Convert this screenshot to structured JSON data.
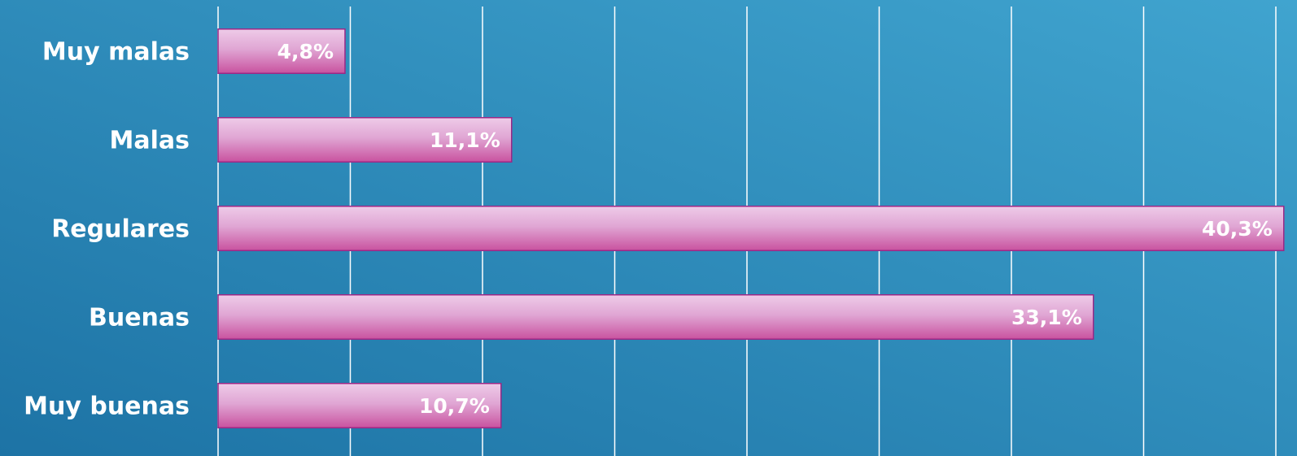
{
  "chart_data": {
    "type": "barh",
    "categories": [
      "Muy malas",
      "Malas",
      "Regulares",
      "Buenas",
      "Muy buenas"
    ],
    "values": [
      4.8,
      11.1,
      40.3,
      33.1,
      10.7
    ],
    "value_labels": [
      "4,8%",
      "11,1%",
      "40,3%",
      "33,1%",
      "10,7%"
    ],
    "xlim": [
      0,
      40.8
    ],
    "xticks": [
      0,
      5,
      10,
      15,
      20,
      25,
      30,
      35,
      40
    ],
    "grid": true
  }
}
